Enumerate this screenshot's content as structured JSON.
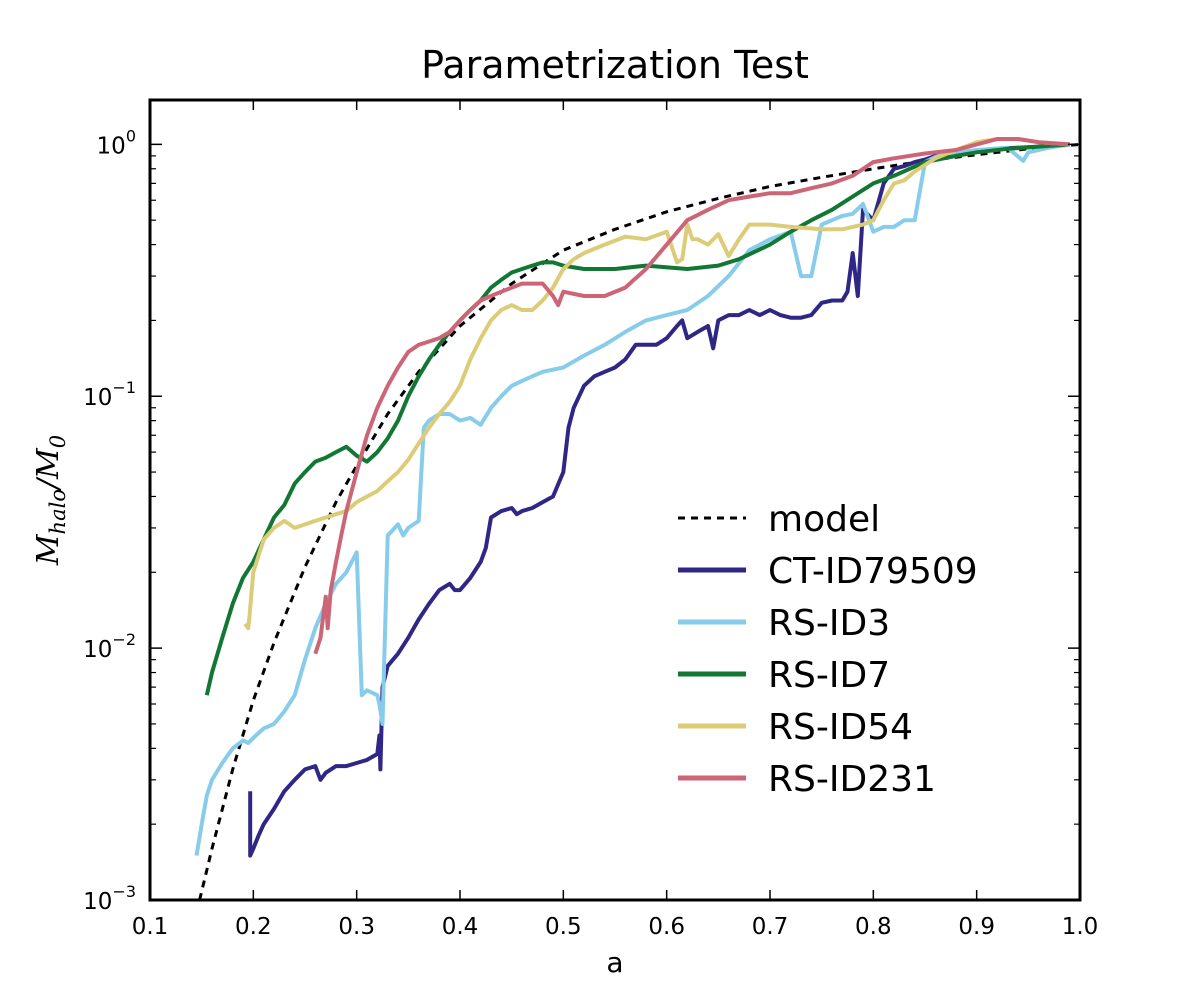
{
  "chart_data": {
    "type": "line",
    "title": "Parametrization Test",
    "xlabel": "a",
    "ylabel": {
      "base": "M",
      "sub": "halo",
      "sep": "/",
      "base2": "M",
      "sub2": "0"
    },
    "xlim": [
      0.1,
      1.0
    ],
    "ylim": [
      0.001,
      1.5
    ],
    "yscale": "log",
    "grid": false,
    "legend_position": "lower-right",
    "x_ticks": [
      "0.1",
      "0.2",
      "0.3",
      "0.4",
      "0.5",
      "0.6",
      "0.7",
      "0.8",
      "0.9",
      "1.0"
    ],
    "y_ticks": [
      {
        "base": "10",
        "exp": "0",
        "value": 1
      },
      {
        "base": "10",
        "exp": "−1",
        "value": 0.1
      },
      {
        "base": "10",
        "exp": "−2",
        "value": 0.01
      },
      {
        "base": "10",
        "exp": "−3",
        "value": 0.001
      }
    ],
    "series": [
      {
        "name": "model",
        "color": "#000000",
        "style": "dotted",
        "x": [
          0.148,
          0.16,
          0.18,
          0.2,
          0.22,
          0.25,
          0.28,
          0.3,
          0.33,
          0.36,
          0.4,
          0.45,
          0.5,
          0.55,
          0.6,
          0.65,
          0.7,
          0.75,
          0.8,
          0.85,
          0.9,
          0.95,
          1.0
        ],
        "y": [
          0.001,
          0.0016,
          0.0033,
          0.0062,
          0.0105,
          0.021,
          0.038,
          0.053,
          0.085,
          0.125,
          0.19,
          0.28,
          0.38,
          0.46,
          0.54,
          0.61,
          0.68,
          0.74,
          0.8,
          0.86,
          0.91,
          0.96,
          1.0
        ]
      },
      {
        "name": "CT-ID79509",
        "color": "#2f2786",
        "style": "solid",
        "x": [
          0.197,
          0.197,
          0.2,
          0.205,
          0.21,
          0.22,
          0.23,
          0.24,
          0.25,
          0.26,
          0.265,
          0.27,
          0.28,
          0.29,
          0.3,
          0.31,
          0.32,
          0.322,
          0.323,
          0.325,
          0.33,
          0.34,
          0.35,
          0.36,
          0.37,
          0.38,
          0.39,
          0.395,
          0.4,
          0.41,
          0.42,
          0.425,
          0.43,
          0.44,
          0.45,
          0.455,
          0.46,
          0.47,
          0.48,
          0.49,
          0.5,
          0.505,
          0.51,
          0.52,
          0.53,
          0.54,
          0.55,
          0.56,
          0.57,
          0.58,
          0.59,
          0.6,
          0.61,
          0.615,
          0.62,
          0.63,
          0.64,
          0.645,
          0.65,
          0.66,
          0.67,
          0.68,
          0.69,
          0.7,
          0.71,
          0.72,
          0.73,
          0.74,
          0.75,
          0.76,
          0.77,
          0.775,
          0.78,
          0.785,
          0.79,
          0.8,
          0.81,
          0.82,
          0.83,
          0.84,
          0.85,
          0.86,
          0.87,
          0.88,
          0.9,
          0.92,
          0.94,
          0.96,
          0.98,
          0.99
        ],
        "y": [
          0.0027,
          0.0015,
          0.0016,
          0.0018,
          0.002,
          0.0023,
          0.0027,
          0.003,
          0.0033,
          0.0034,
          0.003,
          0.0032,
          0.0034,
          0.0034,
          0.0035,
          0.0036,
          0.0038,
          0.0045,
          0.0033,
          0.007,
          0.0085,
          0.0095,
          0.011,
          0.013,
          0.015,
          0.017,
          0.018,
          0.017,
          0.017,
          0.019,
          0.022,
          0.025,
          0.033,
          0.035,
          0.036,
          0.034,
          0.035,
          0.036,
          0.038,
          0.04,
          0.05,
          0.075,
          0.09,
          0.11,
          0.12,
          0.125,
          0.13,
          0.14,
          0.16,
          0.16,
          0.16,
          0.17,
          0.19,
          0.2,
          0.17,
          0.18,
          0.19,
          0.155,
          0.2,
          0.21,
          0.21,
          0.22,
          0.21,
          0.22,
          0.21,
          0.205,
          0.205,
          0.21,
          0.235,
          0.24,
          0.24,
          0.26,
          0.37,
          0.25,
          0.55,
          0.5,
          0.7,
          0.8,
          0.82,
          0.85,
          0.87,
          0.9,
          0.91,
          0.93,
          0.94,
          0.96,
          0.97,
          0.98,
          0.99,
          1.0
        ]
      },
      {
        "name": "RS-ID3",
        "color": "#87ccea",
        "style": "solid",
        "x": [
          0.145,
          0.15,
          0.155,
          0.16,
          0.17,
          0.18,
          0.19,
          0.195,
          0.2,
          0.21,
          0.22,
          0.23,
          0.24,
          0.25,
          0.26,
          0.27,
          0.28,
          0.29,
          0.3,
          0.305,
          0.31,
          0.32,
          0.322,
          0.325,
          0.33,
          0.34,
          0.345,
          0.35,
          0.36,
          0.365,
          0.37,
          0.38,
          0.39,
          0.4,
          0.41,
          0.42,
          0.43,
          0.44,
          0.45,
          0.46,
          0.47,
          0.48,
          0.5,
          0.52,
          0.54,
          0.56,
          0.58,
          0.6,
          0.62,
          0.64,
          0.66,
          0.68,
          0.7,
          0.72,
          0.73,
          0.74,
          0.75,
          0.76,
          0.77,
          0.78,
          0.79,
          0.8,
          0.81,
          0.82,
          0.83,
          0.84,
          0.85,
          0.86,
          0.87,
          0.9,
          0.93,
          0.945,
          0.95,
          0.97,
          0.99
        ],
        "y": [
          0.0015,
          0.002,
          0.0026,
          0.003,
          0.0035,
          0.004,
          0.0043,
          0.0042,
          0.0044,
          0.0048,
          0.005,
          0.0056,
          0.0065,
          0.009,
          0.012,
          0.015,
          0.018,
          0.02,
          0.024,
          0.0065,
          0.0068,
          0.0065,
          0.006,
          0.005,
          0.028,
          0.031,
          0.028,
          0.03,
          0.032,
          0.075,
          0.08,
          0.085,
          0.085,
          0.08,
          0.082,
          0.077,
          0.09,
          0.1,
          0.11,
          0.115,
          0.12,
          0.125,
          0.13,
          0.145,
          0.16,
          0.18,
          0.2,
          0.21,
          0.22,
          0.25,
          0.3,
          0.38,
          0.42,
          0.45,
          0.3,
          0.3,
          0.48,
          0.5,
          0.52,
          0.53,
          0.58,
          0.45,
          0.47,
          0.47,
          0.5,
          0.5,
          0.85,
          0.89,
          0.92,
          0.95,
          0.97,
          0.86,
          0.93,
          0.97,
          1.0
        ]
      },
      {
        "name": "RS-ID7",
        "color": "#117733",
        "style": "solid",
        "x": [
          0.155,
          0.16,
          0.17,
          0.18,
          0.19,
          0.2,
          0.21,
          0.22,
          0.23,
          0.24,
          0.25,
          0.26,
          0.27,
          0.28,
          0.29,
          0.3,
          0.31,
          0.32,
          0.33,
          0.34,
          0.35,
          0.36,
          0.37,
          0.38,
          0.39,
          0.4,
          0.41,
          0.42,
          0.43,
          0.44,
          0.45,
          0.46,
          0.47,
          0.48,
          0.49,
          0.5,
          0.52,
          0.55,
          0.58,
          0.62,
          0.65,
          0.67,
          0.7,
          0.72,
          0.74,
          0.76,
          0.78,
          0.8,
          0.82,
          0.85,
          0.88,
          0.9,
          0.93,
          0.96,
          0.99
        ],
        "y": [
          0.0065,
          0.008,
          0.011,
          0.015,
          0.019,
          0.022,
          0.027,
          0.033,
          0.037,
          0.045,
          0.05,
          0.055,
          0.057,
          0.06,
          0.063,
          0.058,
          0.055,
          0.06,
          0.068,
          0.08,
          0.1,
          0.12,
          0.14,
          0.16,
          0.18,
          0.2,
          0.22,
          0.24,
          0.27,
          0.29,
          0.31,
          0.32,
          0.33,
          0.34,
          0.34,
          0.33,
          0.32,
          0.32,
          0.33,
          0.32,
          0.33,
          0.35,
          0.4,
          0.45,
          0.5,
          0.55,
          0.62,
          0.7,
          0.75,
          0.85,
          0.9,
          0.93,
          0.96,
          0.98,
          1.0
        ]
      },
      {
        "name": "RS-ID54",
        "color": "#ddcc77",
        "style": "solid",
        "x": [
          0.192,
          0.195,
          0.196,
          0.2,
          0.21,
          0.22,
          0.23,
          0.24,
          0.25,
          0.26,
          0.27,
          0.28,
          0.29,
          0.3,
          0.31,
          0.32,
          0.33,
          0.34,
          0.35,
          0.36,
          0.37,
          0.38,
          0.39,
          0.4,
          0.41,
          0.42,
          0.43,
          0.44,
          0.45,
          0.46,
          0.47,
          0.48,
          0.49,
          0.5,
          0.51,
          0.52,
          0.54,
          0.56,
          0.58,
          0.6,
          0.61,
          0.615,
          0.62,
          0.625,
          0.63,
          0.64,
          0.65,
          0.66,
          0.67,
          0.68,
          0.7,
          0.72,
          0.75,
          0.77,
          0.79,
          0.8,
          0.81,
          0.82,
          0.83,
          0.84,
          0.86,
          0.88,
          0.9,
          0.92,
          0.94,
          0.96,
          0.99
        ],
        "y": [
          0.0125,
          0.012,
          0.013,
          0.02,
          0.027,
          0.03,
          0.032,
          0.03,
          0.031,
          0.032,
          0.033,
          0.034,
          0.035,
          0.038,
          0.04,
          0.042,
          0.046,
          0.05,
          0.056,
          0.065,
          0.075,
          0.085,
          0.095,
          0.11,
          0.14,
          0.17,
          0.2,
          0.22,
          0.23,
          0.22,
          0.22,
          0.24,
          0.27,
          0.32,
          0.35,
          0.37,
          0.4,
          0.43,
          0.42,
          0.45,
          0.34,
          0.35,
          0.48,
          0.42,
          0.42,
          0.4,
          0.44,
          0.36,
          0.42,
          0.48,
          0.48,
          0.47,
          0.46,
          0.46,
          0.48,
          0.5,
          0.6,
          0.7,
          0.72,
          0.78,
          0.88,
          0.95,
          1.02,
          1.05,
          1.05,
          1.02,
          1.0
        ]
      },
      {
        "name": "RS-ID231",
        "color": "#cc6677",
        "style": "solid",
        "x": [
          0.26,
          0.265,
          0.27,
          0.272,
          0.275,
          0.28,
          0.285,
          0.29,
          0.3,
          0.31,
          0.32,
          0.33,
          0.34,
          0.35,
          0.36,
          0.37,
          0.38,
          0.39,
          0.4,
          0.41,
          0.42,
          0.43,
          0.44,
          0.45,
          0.46,
          0.47,
          0.48,
          0.49,
          0.495,
          0.5,
          0.52,
          0.54,
          0.56,
          0.58,
          0.6,
          0.62,
          0.64,
          0.66,
          0.68,
          0.7,
          0.72,
          0.74,
          0.76,
          0.78,
          0.8,
          0.82,
          0.85,
          0.88,
          0.9,
          0.92,
          0.94,
          0.96,
          0.99
        ],
        "y": [
          0.0095,
          0.011,
          0.016,
          0.012,
          0.017,
          0.022,
          0.028,
          0.035,
          0.05,
          0.07,
          0.09,
          0.11,
          0.13,
          0.15,
          0.16,
          0.165,
          0.17,
          0.18,
          0.2,
          0.22,
          0.24,
          0.25,
          0.26,
          0.27,
          0.28,
          0.28,
          0.28,
          0.25,
          0.23,
          0.26,
          0.25,
          0.25,
          0.27,
          0.32,
          0.4,
          0.5,
          0.55,
          0.6,
          0.62,
          0.64,
          0.64,
          0.67,
          0.7,
          0.75,
          0.85,
          0.88,
          0.92,
          0.95,
          1.0,
          1.05,
          1.05,
          1.02,
          1.0
        ]
      }
    ]
  }
}
